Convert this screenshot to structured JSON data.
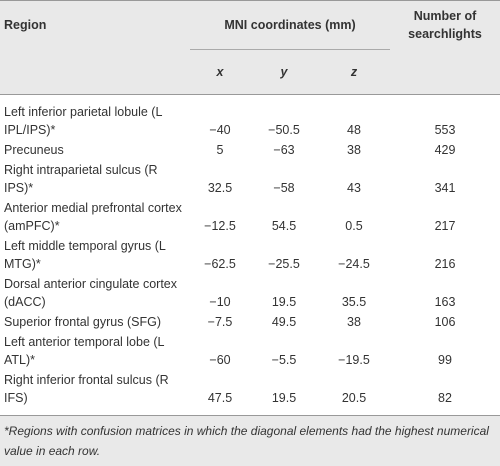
{
  "table": {
    "header": {
      "region": "Region",
      "mni": "MNI coordinates (mm)",
      "count": "Number of searchlights"
    },
    "axes": [
      "x",
      "y",
      "z"
    ],
    "rows": [
      [
        "Left inferior parietal lobule (L IPL/IPS)*",
        "−40",
        "−50.5",
        "48",
        "553"
      ],
      [
        "Precuneus",
        "5",
        "−63",
        "38",
        "429"
      ],
      [
        "Right intraparietal sulcus (R IPS)*",
        "32.5",
        "−58",
        "43",
        "341"
      ],
      [
        "Anterior medial prefrontal cortex (amPFC)*",
        "−12.5",
        "54.5",
        "0.5",
        "217"
      ],
      [
        "Left middle temporal gyrus (L MTG)*",
        "−62.5",
        "−25.5",
        "−24.5",
        "216"
      ],
      [
        "Dorsal anterior cingulate cortex (dACC)",
        "−10",
        "19.5",
        "35.5",
        "163"
      ],
      [
        "Superior frontal gyrus (SFG)",
        "−7.5",
        "49.5",
        "38",
        "106"
      ],
      [
        "Left anterior temporal lobe (L ATL)*",
        "−60",
        "−5.5",
        "−19.5",
        "99"
      ],
      [
        "Right inferior frontal sulcus (R IFS)",
        "47.5",
        "19.5",
        "20.5",
        "82"
      ]
    ]
  },
  "footnote": "*Regions with confusion matrices in which the diagonal elements had the highest numerical value in each row."
}
